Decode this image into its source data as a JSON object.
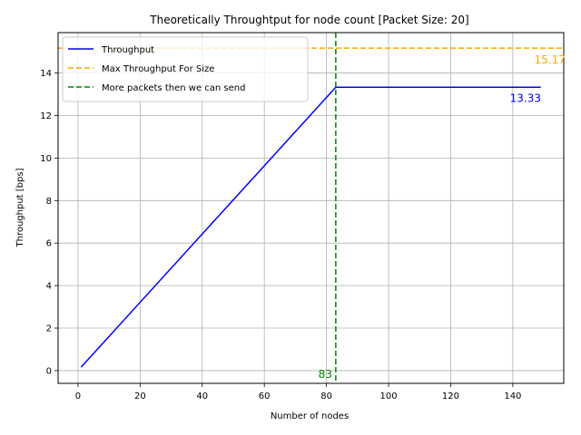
{
  "chart_data": {
    "type": "line",
    "title": "Theoretically Throughtput for node count [Packet Size: 20]",
    "xlabel": "Number of nodes",
    "ylabel": "Throughput [bps]",
    "xlim": [
      -6.4,
      156.4
    ],
    "ylim": [
      -0.6,
      15.9
    ],
    "xticks": [
      0,
      20,
      40,
      60,
      80,
      100,
      120,
      140
    ],
    "yticks": [
      0,
      2,
      4,
      6,
      8,
      10,
      12,
      14
    ],
    "grid": true,
    "legend_placement": "top-left",
    "series": [
      {
        "name": "Throughput",
        "style": "solid",
        "color": "#0000ff",
        "x": [
          1,
          83,
          149
        ],
        "y": [
          0.16,
          13.33,
          13.33
        ]
      },
      {
        "name": "Max Throughput For Size",
        "style": "dashed-horizontal",
        "color": "#ffa500",
        "y": 15.17
      },
      {
        "name": "More packets then we can send",
        "style": "dashed-vertical",
        "color": "#008000",
        "x": 83
      }
    ],
    "annotations": [
      {
        "text": "15.17",
        "x": 150,
        "y": 15.17,
        "color": "#ffa500"
      },
      {
        "text": "13.33",
        "x": 149,
        "y": 13.33,
        "color": "#0000ff"
      },
      {
        "text": "83",
        "x": 83,
        "y": 0,
        "color": "#008000"
      }
    ]
  }
}
